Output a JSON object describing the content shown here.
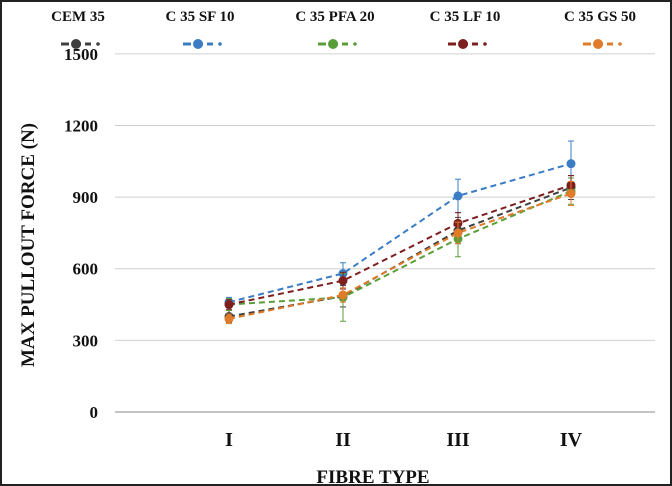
{
  "chart_data": {
    "type": "line",
    "categories": [
      "I",
      "II",
      "III",
      "IV"
    ],
    "xlabel": "FIBRE TYPE",
    "ylabel": "MAX PULLOUT FORCE (N)",
    "ylim": [
      0,
      1650
    ],
    "yticks": [
      "0",
      "300",
      "600",
      "900",
      "1200",
      "1500"
    ],
    "grid": "horizontal",
    "legend_position": "top",
    "series": [
      {
        "name": "CEM 35",
        "color": "#3f3f3f",
        "values": [
          400,
          485,
          760,
          940
        ],
        "error": [
          25,
          45,
          55,
          50
        ]
      },
      {
        "name": "C 35 SF 10",
        "color": "#3a7dc4",
        "values": [
          460,
          580,
          905,
          1040
        ],
        "error": [
          20,
          45,
          70,
          95
        ]
      },
      {
        "name": "C 35 PFA 20",
        "color": "#5a9e3a",
        "values": [
          450,
          480,
          725,
          925
        ],
        "error": [
          25,
          100,
          75,
          55
        ]
      },
      {
        "name": "C 35 LF 10",
        "color": "#7e1f1f",
        "values": [
          450,
          550,
          790,
          950
        ],
        "error": [
          20,
          35,
          45,
          40
        ]
      },
      {
        "name": "C 35 GS 50",
        "color": "#e07b2a",
        "values": [
          390,
          490,
          750,
          915
        ],
        "error": [
          20,
          30,
          45,
          50
        ]
      }
    ]
  }
}
